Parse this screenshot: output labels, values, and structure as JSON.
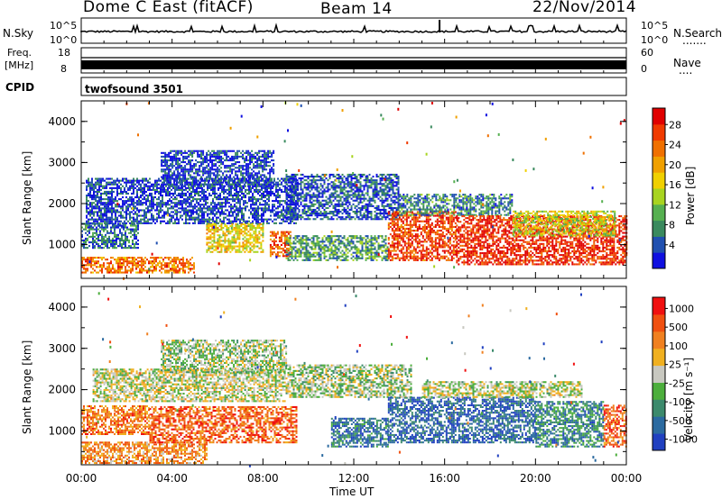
{
  "header": {
    "radar": "Dome C East (fitACF)",
    "beam": "Beam 14",
    "date": "22/Nov/2014"
  },
  "sky_panel": {
    "label": "N.Sky",
    "left_top": "10^5",
    "left_bottom": "10^0",
    "right_top": "10^5",
    "right_bottom": "10^0",
    "right_label": "N.Search",
    "right_dots": "......."
  },
  "freq_panel": {
    "label_line1": "Freq.",
    "label_line2": "[MHz]",
    "left_top": "18",
    "left_bottom": "8",
    "right_top": "60",
    "right_bottom": "0",
    "right_label": "Nave",
    "right_dots": "...."
  },
  "cpid_panel": {
    "label": "CPID",
    "value": "twofsound 3501"
  },
  "chart_data": [
    {
      "type": "heatmap",
      "title": "",
      "ylabel": "Slant Range [km]",
      "xlabel": "",
      "y_ticks": [
        "1000",
        "2000",
        "3000",
        "4000"
      ],
      "colorbar_label": "Power [dB]",
      "colorbar_ticks": [
        "4",
        "8",
        "12",
        "16",
        "20",
        "24",
        "28"
      ],
      "colorbar_colors": [
        "#1010e0",
        "#2050b0",
        "#3a8a5e",
        "#56b050",
        "#a8d420",
        "#f0d000",
        "#f0a000",
        "#f07000",
        "#f03a00",
        "#e00000"
      ],
      "y_range_km": [
        180,
        4500
      ],
      "x_range_hours": [
        0,
        24
      ],
      "regions": [
        {
          "t0": 0.0,
          "t1": 5.0,
          "r0": 300,
          "r1": 700,
          "level": 0.75
        },
        {
          "t0": 0.0,
          "t1": 2.5,
          "r0": 900,
          "r1": 1500,
          "level": 0.2
        },
        {
          "t0": 0.2,
          "t1": 9.5,
          "r0": 1500,
          "r1": 2600,
          "level": 0.12
        },
        {
          "t0": 3.5,
          "t1": 8.5,
          "r0": 2400,
          "r1": 3300,
          "level": 0.1
        },
        {
          "t0": 5.5,
          "t1": 8.0,
          "r0": 800,
          "r1": 1500,
          "level": 0.55
        },
        {
          "t0": 8.3,
          "t1": 9.2,
          "r0": 700,
          "r1": 1300,
          "level": 0.8
        },
        {
          "t0": 9.0,
          "t1": 14.0,
          "r0": 1600,
          "r1": 2700,
          "level": 0.15
        },
        {
          "t0": 9.0,
          "t1": 13.5,
          "r0": 600,
          "r1": 1200,
          "level": 0.3
        },
        {
          "t0": 13.5,
          "t1": 16.5,
          "r0": 600,
          "r1": 1800,
          "level": 0.85
        },
        {
          "t0": 14.0,
          "t1": 19.0,
          "r0": 1700,
          "r1": 2200,
          "level": 0.25
        },
        {
          "t0": 16.5,
          "t1": 24.0,
          "r0": 500,
          "r1": 1700,
          "level": 0.9
        },
        {
          "t0": 19.0,
          "t1": 23.5,
          "r0": 1200,
          "r1": 1800,
          "level": 0.5
        }
      ]
    },
    {
      "type": "heatmap",
      "title": "",
      "ylabel": "Slant Range [km]",
      "xlabel": "Time UT",
      "y_ticks": [
        "1000",
        "2000",
        "3000",
        "4000"
      ],
      "colorbar_label": "Velocity [m s⁻¹]",
      "colorbar_ticks": [
        "1000",
        "500",
        "100",
        "25",
        "-25",
        "-100",
        "-500",
        "-1000"
      ],
      "colorbar_colors": [
        "#2040c0",
        "#2b6aa0",
        "#3c8a6c",
        "#4cae3c",
        "#c8c8c0",
        "#f0b020",
        "#f08020",
        "#f05010",
        "#f01010"
      ],
      "y_range_km": [
        180,
        4500
      ],
      "x_range_hours": [
        0,
        24
      ],
      "regions": [
        {
          "t0": 0.0,
          "t1": 5.5,
          "r0": 200,
          "r1": 700,
          "level": 0.7
        },
        {
          "t0": 0.0,
          "t1": 3.0,
          "r0": 900,
          "r1": 1600,
          "level": 0.75
        },
        {
          "t0": 3.0,
          "t1": 9.5,
          "r0": 700,
          "r1": 1600,
          "level": 0.8
        },
        {
          "t0": 0.5,
          "t1": 9.0,
          "r0": 1700,
          "r1": 2500,
          "level": 0.5
        },
        {
          "t0": 3.5,
          "t1": 9.0,
          "r0": 2400,
          "r1": 3200,
          "level": 0.45
        },
        {
          "t0": 9.0,
          "t1": 14.5,
          "r0": 1800,
          "r1": 2600,
          "level": 0.45
        },
        {
          "t0": 11.0,
          "t1": 13.5,
          "r0": 600,
          "r1": 1300,
          "level": 0.2
        },
        {
          "t0": 13.5,
          "t1": 20.0,
          "r0": 700,
          "r1": 1800,
          "level": 0.15
        },
        {
          "t0": 20.0,
          "t1": 23.0,
          "r0": 600,
          "r1": 1700,
          "level": 0.25
        },
        {
          "t0": 15.0,
          "t1": 22.0,
          "r0": 1800,
          "r1": 2200,
          "level": 0.5
        },
        {
          "t0": 23.0,
          "t1": 24.0,
          "r0": 600,
          "r1": 1600,
          "level": 0.8
        }
      ]
    }
  ],
  "x_axis": {
    "ticks": [
      "00:00",
      "04:00",
      "08:00",
      "12:00",
      "16:00",
      "20:00",
      "00:00"
    ],
    "label": "Time UT"
  }
}
